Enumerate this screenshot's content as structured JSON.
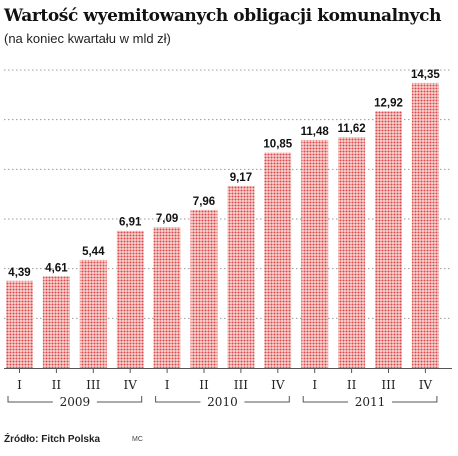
{
  "title": "Wartość wyemitowanych obligacji komunalnych",
  "subtitle": "(na koniec kwartału w mld zł)",
  "source": "Źródło: Fitch Polska",
  "credit": "MC",
  "colors": {
    "bar": "#e0474b",
    "bar_bg": "#f6d6d2",
    "grid": "#9a9a9a",
    "axis": "#555555",
    "text": "#111111"
  },
  "chart_data": {
    "type": "bar",
    "title": "Wartość wyemitowanych obligacji komunalnych",
    "subtitle": "(na koniec kwartału w mld zł)",
    "categories": [
      "I",
      "II",
      "III",
      "IV",
      "I",
      "II",
      "III",
      "IV",
      "I",
      "II",
      "III",
      "IV"
    ],
    "groups": [
      {
        "label": "2009",
        "from": 0,
        "to": 3
      },
      {
        "label": "2010",
        "from": 4,
        "to": 7
      },
      {
        "label": "2011",
        "from": 8,
        "to": 11
      }
    ],
    "values": [
      4.39,
      4.61,
      5.44,
      6.91,
      7.09,
      7.96,
      9.17,
      10.85,
      11.48,
      11.62,
      12.92,
      14.35
    ],
    "value_labels": [
      "4,39",
      "4,61",
      "5,44",
      "6,91",
      "7,09",
      "7,96",
      "9,17",
      "10,85",
      "11,48",
      "11,62",
      "12,92",
      "14,35"
    ],
    "xlabel": "",
    "ylabel": "",
    "ylim": [
      0,
      15
    ],
    "grid": true
  }
}
